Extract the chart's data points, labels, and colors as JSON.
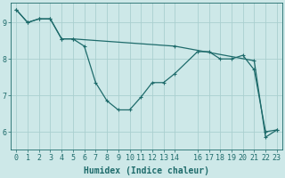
{
  "xlabel": "Humidex (Indice chaleur)",
  "background_color": "#cde8e8",
  "grid_color": "#aacfcf",
  "line_color": "#1e6b6b",
  "xlim": [
    -0.5,
    23.5
  ],
  "ylim": [
    5.5,
    9.55
  ],
  "yticks": [
    6,
    7,
    8,
    9
  ],
  "xticks": [
    0,
    1,
    2,
    3,
    4,
    5,
    6,
    7,
    8,
    9,
    10,
    11,
    12,
    13,
    14,
    16,
    17,
    18,
    19,
    20,
    21,
    22,
    23
  ],
  "xtick_labels": [
    "0",
    "1",
    "2",
    "3",
    "4",
    "5",
    "6",
    "7",
    "8",
    "9",
    "10",
    "11",
    "12",
    "13",
    "14",
    "16",
    "17",
    "18",
    "19",
    "20",
    "21",
    "22",
    "23"
  ],
  "series1_x": [
    0,
    1,
    2,
    3,
    4,
    5,
    6,
    7,
    8,
    9,
    10,
    11,
    12,
    13,
    14,
    16,
    17,
    18,
    19,
    20,
    21,
    22,
    23
  ],
  "series1_y": [
    9.35,
    9.0,
    9.1,
    9.1,
    8.55,
    8.55,
    8.35,
    7.35,
    6.85,
    6.6,
    6.6,
    6.95,
    7.35,
    7.35,
    7.6,
    8.2,
    8.2,
    8.0,
    8.0,
    8.1,
    7.7,
    6.0,
    6.05
  ],
  "series2_x": [
    0,
    1,
    2,
    3,
    4,
    5,
    14,
    21,
    22,
    23
  ],
  "series2_y": [
    9.35,
    9.0,
    9.1,
    9.1,
    8.55,
    8.55,
    8.35,
    7.95,
    5.85,
    6.05
  ],
  "font_size": 6.5,
  "tick_font_size": 6.0,
  "label_fontsize": 7.0
}
